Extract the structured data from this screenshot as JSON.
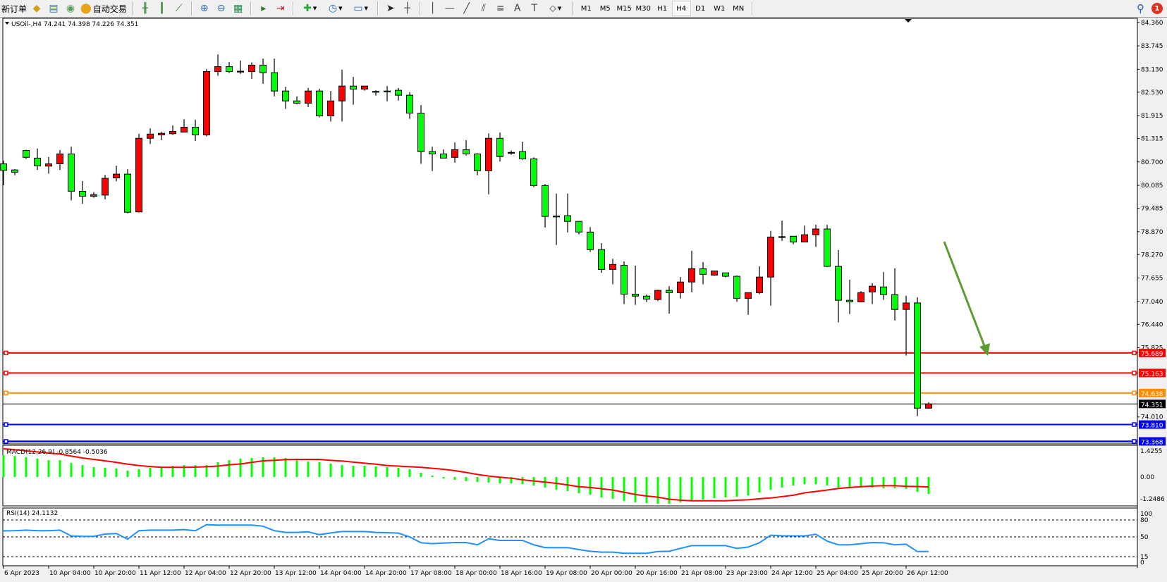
{
  "toolbar": {
    "items": [
      {
        "type": "text",
        "label": "新订单",
        "name": "new-order-button"
      },
      {
        "type": "icon",
        "icon": "market-watch-icon",
        "glyph": "◆",
        "color": "#d4a017",
        "name": "market-watch-button"
      },
      {
        "type": "icon",
        "icon": "history-center-icon",
        "glyph": "▤",
        "color": "#3b78c4",
        "name": "history-center-button"
      },
      {
        "type": "icon",
        "icon": "signals-icon",
        "glyph": "◉",
        "color": "#5aa05a",
        "name": "signals-button"
      },
      {
        "type": "icontext",
        "icon": "auto-trading-icon",
        "glyph": "⬤",
        "color": "#e8a317",
        "label": "自动交易",
        "name": "auto-trading-button"
      },
      {
        "type": "sep"
      },
      {
        "type": "icon",
        "icon": "bar-chart-icon",
        "glyph": "╫",
        "color": "#2a7a2a",
        "name": "bar-chart-button"
      },
      {
        "type": "icon",
        "icon": "candlestick-icon",
        "glyph": "┃",
        "color": "#2a7a2a",
        "name": "candlestick-button"
      },
      {
        "type": "icon",
        "icon": "line-chart-icon",
        "glyph": "⟋",
        "color": "#2a7a2a",
        "name": "line-chart-button"
      },
      {
        "type": "sep"
      },
      {
        "type": "icon",
        "icon": "zoom-in-icon",
        "glyph": "⊕",
        "color": "#2a6ab8",
        "name": "zoom-in-button"
      },
      {
        "type": "icon",
        "icon": "zoom-out-icon",
        "glyph": "⊖",
        "color": "#2a6ab8",
        "name": "zoom-out-button"
      },
      {
        "type": "icon",
        "icon": "tile-windows-icon",
        "glyph": "▦",
        "color": "#2a8a4a",
        "name": "tile-windows-button"
      },
      {
        "type": "sep"
      },
      {
        "type": "icon",
        "icon": "auto-scroll-icon",
        "glyph": "▸",
        "color": "#2a7a2a",
        "name": "auto-scroll-button"
      },
      {
        "type": "icon",
        "icon": "chart-shift-icon",
        "glyph": "⇥",
        "color": "#c02020",
        "name": "chart-shift-button"
      },
      {
        "type": "sep"
      },
      {
        "type": "icondd",
        "icon": "indicators-icon",
        "glyph": "✚",
        "color": "#1fae2f",
        "name": "indicators-button"
      },
      {
        "type": "icondd",
        "icon": "periods-clock-icon",
        "glyph": "◷",
        "color": "#2a6ab8",
        "name": "periods-button"
      },
      {
        "type": "icondd",
        "icon": "templates-icon",
        "glyph": "▭",
        "color": "#2a6ab8",
        "name": "templates-button"
      },
      {
        "type": "sep"
      },
      {
        "type": "icon",
        "icon": "cursor-icon",
        "glyph": "➤",
        "color": "#222",
        "name": "cursor-button"
      },
      {
        "type": "icon",
        "icon": "crosshair-icon",
        "glyph": "┼",
        "color": "#444",
        "name": "crosshair-button"
      },
      {
        "type": "sep"
      },
      {
        "type": "icon",
        "icon": "vertical-line-icon",
        "glyph": "│",
        "color": "#444",
        "name": "vertical-line-button"
      },
      {
        "type": "icon",
        "icon": "horizontal-line-icon",
        "glyph": "—",
        "color": "#444",
        "name": "horizontal-line-button"
      },
      {
        "type": "icon",
        "icon": "trendline-icon",
        "glyph": "╱",
        "color": "#444",
        "name": "trendline-button"
      },
      {
        "type": "icon",
        "icon": "equidistant-channel-icon",
        "glyph": "⫽",
        "color": "#444",
        "name": "channel-button"
      },
      {
        "type": "icon",
        "icon": "fibonacci-icon",
        "glyph": "≡",
        "color": "#444",
        "name": "fibonacci-button"
      },
      {
        "type": "icon",
        "icon": "text-icon",
        "glyph": "A",
        "color": "#444",
        "name": "text-button"
      },
      {
        "type": "icon",
        "icon": "text-label-icon",
        "glyph": "T",
        "color": "#444",
        "name": "text-label-button"
      },
      {
        "type": "icondd",
        "icon": "shapes-icon",
        "glyph": "⬦",
        "color": "#444",
        "name": "shapes-button"
      },
      {
        "type": "sep"
      }
    ],
    "timeframes": [
      "M1",
      "M5",
      "M15",
      "M30",
      "H1",
      "H4",
      "D1",
      "W1",
      "MN"
    ],
    "active_timeframe": "H4",
    "notification_count": "1"
  },
  "chart": {
    "legend": "USOil-,H4  74.241 74.398 74.226 74.351",
    "macd_label": "MACD(12,26,9) -0.8564 -0.5036",
    "rsi_label": "RSI(14) 24.1132",
    "colors": {
      "bull": "#FF0000",
      "bear": "#00FF00",
      "macd_hist": "#00FF00",
      "macd_signal": "#FF0000",
      "rsi": "#1E90FF",
      "arrow": "#5A9E32"
    }
  },
  "chart_data": {
    "type": "candlestick",
    "symbol": "USOil-",
    "timeframe": "H4",
    "price_ticks": [
      "84.360",
      "83.745",
      "83.130",
      "82.530",
      "81.915",
      "81.315",
      "80.700",
      "80.085",
      "79.485",
      "78.870",
      "78.270",
      "77.655",
      "77.040",
      "76.440",
      "75.825",
      "74.010"
    ],
    "ylim": [
      73.25,
      84.45
    ],
    "time_labels": [
      "6 Apr 2023",
      "10 Apr 04:00",
      "10 Apr 20:00",
      "11 Apr 12:00",
      "12 Apr 04:00",
      "12 Apr 20:00",
      "13 Apr 12:00",
      "14 Apr 04:00",
      "14 Apr 20:00",
      "17 Apr 08:00",
      "18 Apr 00:00",
      "18 Apr 16:00",
      "19 Apr 08:00",
      "20 Apr 00:00",
      "20 Apr 16:00",
      "21 Apr 08:00",
      "23 Apr 23:00",
      "24 Apr 12:00",
      "25 Apr 04:00",
      "25 Apr 20:00",
      "26 Apr 12:00"
    ],
    "bars_per_time_label": 4,
    "ohlc": [
      [
        80.65,
        80.73,
        80.09,
        80.48
      ],
      [
        80.49,
        80.51,
        80.35,
        80.43
      ],
      [
        81.0,
        81.02,
        80.78,
        80.82
      ],
      [
        80.8,
        81.05,
        80.49,
        80.6
      ],
      [
        80.59,
        80.83,
        80.39,
        80.65
      ],
      [
        80.65,
        81.01,
        80.49,
        80.91
      ],
      [
        80.91,
        81.1,
        79.69,
        79.93
      ],
      [
        79.93,
        80.2,
        79.6,
        79.8
      ],
      [
        79.8,
        79.91,
        79.76,
        79.84
      ],
      [
        79.83,
        80.36,
        79.72,
        80.27
      ],
      [
        80.28,
        80.6,
        80.19,
        80.38
      ],
      [
        80.38,
        80.51,
        79.35,
        79.38
      ],
      [
        79.39,
        81.44,
        79.37,
        81.32
      ],
      [
        81.32,
        81.58,
        81.17,
        81.43
      ],
      [
        81.41,
        81.49,
        81.27,
        81.45
      ],
      [
        81.44,
        81.66,
        81.41,
        81.5
      ],
      [
        81.48,
        81.82,
        81.48,
        81.61
      ],
      [
        81.61,
        81.81,
        81.25,
        81.41
      ],
      [
        81.41,
        83.14,
        81.37,
        83.07
      ],
      [
        83.07,
        83.52,
        82.96,
        83.2
      ],
      [
        83.2,
        83.32,
        83.03,
        83.07
      ],
      [
        83.07,
        83.36,
        83.01,
        83.08
      ],
      [
        83.07,
        83.31,
        82.88,
        83.24
      ],
      [
        83.24,
        83.41,
        82.75,
        83.04
      ],
      [
        83.04,
        83.41,
        82.42,
        82.56
      ],
      [
        82.56,
        82.67,
        82.09,
        82.3
      ],
      [
        82.3,
        82.42,
        82.21,
        82.24
      ],
      [
        82.24,
        82.64,
        82.14,
        82.56
      ],
      [
        82.56,
        82.62,
        81.87,
        81.91
      ],
      [
        81.91,
        82.56,
        81.76,
        82.3
      ],
      [
        82.3,
        83.12,
        81.76,
        82.69
      ],
      [
        82.69,
        82.93,
        82.2,
        82.61
      ],
      [
        82.61,
        82.69,
        82.57,
        82.69
      ],
      [
        82.55,
        82.58,
        82.44,
        82.54
      ],
      [
        82.56,
        82.69,
        82.29,
        82.55
      ],
      [
        82.58,
        82.64,
        82.31,
        82.45
      ],
      [
        82.45,
        82.53,
        81.83,
        81.98
      ],
      [
        81.98,
        82.19,
        80.65,
        80.97
      ],
      [
        80.97,
        81.1,
        80.46,
        80.91
      ],
      [
        80.91,
        81.03,
        80.8,
        80.8
      ],
      [
        80.82,
        81.21,
        80.68,
        81.02
      ],
      [
        81.02,
        81.27,
        80.87,
        80.91
      ],
      [
        80.91,
        80.93,
        80.35,
        80.47
      ],
      [
        80.47,
        81.45,
        79.85,
        81.32
      ],
      [
        81.32,
        81.47,
        80.71,
        80.84
      ],
      [
        80.95,
        81.0,
        80.89,
        80.95
      ],
      [
        80.97,
        81.23,
        80.75,
        80.78
      ],
      [
        80.78,
        80.82,
        80.04,
        80.08
      ],
      [
        80.08,
        80.12,
        78.98,
        79.27
      ],
      [
        79.28,
        79.87,
        78.52,
        79.27
      ],
      [
        79.29,
        79.87,
        78.85,
        79.14
      ],
      [
        79.14,
        79.14,
        78.8,
        78.86
      ],
      [
        78.86,
        78.99,
        78.34,
        78.4
      ],
      [
        78.4,
        78.57,
        77.79,
        77.88
      ],
      [
        77.88,
        78.16,
        77.49,
        78.01
      ],
      [
        77.99,
        78.09,
        76.97,
        77.23
      ],
      [
        77.23,
        77.98,
        76.95,
        77.18
      ],
      [
        77.18,
        77.22,
        77.02,
        77.1
      ],
      [
        77.09,
        77.35,
        77.05,
        77.33
      ],
      [
        77.33,
        77.44,
        76.72,
        77.27
      ],
      [
        77.27,
        77.68,
        77.12,
        77.55
      ],
      [
        77.55,
        78.37,
        77.28,
        77.9
      ],
      [
        77.9,
        78.07,
        77.49,
        77.75
      ],
      [
        77.73,
        77.84,
        77.71,
        77.84
      ],
      [
        77.79,
        77.79,
        77.67,
        77.7
      ],
      [
        77.7,
        77.72,
        77.03,
        77.12
      ],
      [
        77.12,
        77.27,
        76.69,
        77.27
      ],
      [
        77.27,
        77.96,
        77.23,
        77.68
      ],
      [
        77.68,
        78.89,
        76.93,
        78.73
      ],
      [
        78.74,
        79.16,
        78.63,
        78.74
      ],
      [
        78.75,
        78.75,
        78.54,
        78.6
      ],
      [
        78.6,
        79.03,
        78.6,
        78.79
      ],
      [
        78.79,
        79.05,
        78.47,
        78.94
      ],
      [
        78.94,
        79.05,
        77.94,
        77.96
      ],
      [
        77.96,
        78.39,
        76.49,
        77.07
      ],
      [
        77.07,
        77.61,
        76.71,
        77.03
      ],
      [
        77.03,
        77.31,
        77.03,
        77.27
      ],
      [
        77.29,
        77.52,
        76.97,
        77.44
      ],
      [
        77.42,
        77.81,
        77.08,
        77.22
      ],
      [
        77.22,
        77.91,
        76.54,
        76.83
      ],
      [
        76.83,
        77.19,
        75.62,
        77.0
      ],
      [
        77.0,
        77.15,
        74.03,
        74.24
      ],
      [
        74.241,
        74.398,
        74.226,
        74.351
      ]
    ],
    "horizontal_levels": [
      {
        "price": 75.689,
        "color": "#FF0000",
        "label": "75.689"
      },
      {
        "price": 75.163,
        "color": "#FF0000",
        "label": "75.163"
      },
      {
        "price": 74.638,
        "color": "#FF8C00",
        "label": "74.638"
      },
      {
        "price": 73.81,
        "color": "#0000FF",
        "label": "73.810"
      },
      {
        "price": 73.368,
        "color": "#0000FF",
        "label": "73.368"
      }
    ],
    "bid": {
      "price": 74.351,
      "label": "74.351",
      "color": "#000000"
    },
    "macd": {
      "ticks": [
        "1.4255",
        "0.00",
        "-1.2486"
      ],
      "ylim": [
        -1.2486,
        1.4255
      ],
      "main": [
        1.1,
        1.06,
        1.0,
        0.93,
        0.85,
        0.85,
        0.71,
        0.6,
        0.5,
        0.46,
        0.43,
        0.32,
        0.39,
        0.46,
        0.46,
        0.57,
        0.6,
        0.6,
        0.6,
        0.75,
        0.85,
        0.93,
        0.96,
        1.0,
        1.0,
        0.96,
        0.85,
        0.78,
        0.75,
        0.68,
        0.6,
        0.57,
        0.57,
        0.53,
        0.5,
        0.46,
        0.39,
        0.21,
        0.07,
        -0.07,
        -0.14,
        -0.21,
        -0.25,
        -0.28,
        -0.32,
        -0.32,
        -0.36,
        -0.43,
        -0.53,
        -0.64,
        -0.71,
        -0.82,
        -0.89,
        -1.03,
        -1.1,
        -1.21,
        -1.28,
        -1.32,
        -1.35,
        -1.35,
        -1.28,
        -1.17,
        -1.14,
        -1.07,
        -1.03,
        -1.0,
        -0.93,
        -0.78,
        -0.64,
        -0.53,
        -0.43,
        -0.36,
        -0.36,
        -0.43,
        -0.53,
        -0.5,
        -0.53,
        -0.53,
        -0.57,
        -0.57,
        -0.6,
        -0.75,
        -0.8564
      ],
      "signal": [
        1.43,
        1.38,
        1.32,
        1.27,
        1.21,
        1.16,
        1.06,
        0.96,
        0.89,
        0.82,
        0.74,
        0.65,
        0.58,
        0.53,
        0.49,
        0.49,
        0.49,
        0.5,
        0.52,
        0.55,
        0.62,
        0.66,
        0.74,
        0.82,
        0.84,
        0.88,
        0.89,
        0.89,
        0.89,
        0.84,
        0.81,
        0.75,
        0.7,
        0.65,
        0.58,
        0.55,
        0.52,
        0.49,
        0.44,
        0.39,
        0.32,
        0.23,
        0.13,
        0.05,
        -0.01,
        -0.06,
        -0.14,
        -0.2,
        -0.26,
        -0.32,
        -0.4,
        -0.49,
        -0.53,
        -0.59,
        -0.66,
        -0.77,
        -0.88,
        -0.96,
        -1.02,
        -1.12,
        -1.17,
        -1.2,
        -1.2,
        -1.2,
        -1.2,
        -1.17,
        -1.15,
        -1.1,
        -1.06,
        -0.99,
        -0.92,
        -0.8,
        -0.73,
        -0.66,
        -0.58,
        -0.53,
        -0.49,
        -0.46,
        -0.44,
        -0.44,
        -0.47,
        -0.48,
        -0.5036
      ]
    },
    "rsi": {
      "ticks": [
        "100",
        "80",
        "50",
        "15",
        "0"
      ],
      "levels": [
        80,
        50,
        15
      ],
      "values": [
        60.8,
        61,
        62,
        61,
        61,
        62,
        51.7,
        51,
        51,
        55,
        56,
        46,
        61,
        62,
        62,
        62,
        63,
        61,
        71.7,
        71,
        71,
        71,
        71,
        69,
        61,
        58,
        58,
        59,
        54,
        57,
        59.6,
        59.6,
        59.6,
        58,
        57.5,
        56.7,
        50,
        39.6,
        38,
        39,
        40,
        40,
        36,
        46.7,
        43.8,
        43.8,
        43.8,
        36,
        31,
        31,
        31,
        27.5,
        24.6,
        23,
        23,
        21,
        21,
        21,
        24,
        24.6,
        29.6,
        34.6,
        34.6,
        34.6,
        34.6,
        29.6,
        32,
        39.6,
        53,
        52,
        51.7,
        51.7,
        54.6,
        42.5,
        36,
        36,
        38,
        40,
        39.6,
        36,
        37,
        24,
        24.1132
      ]
    }
  }
}
